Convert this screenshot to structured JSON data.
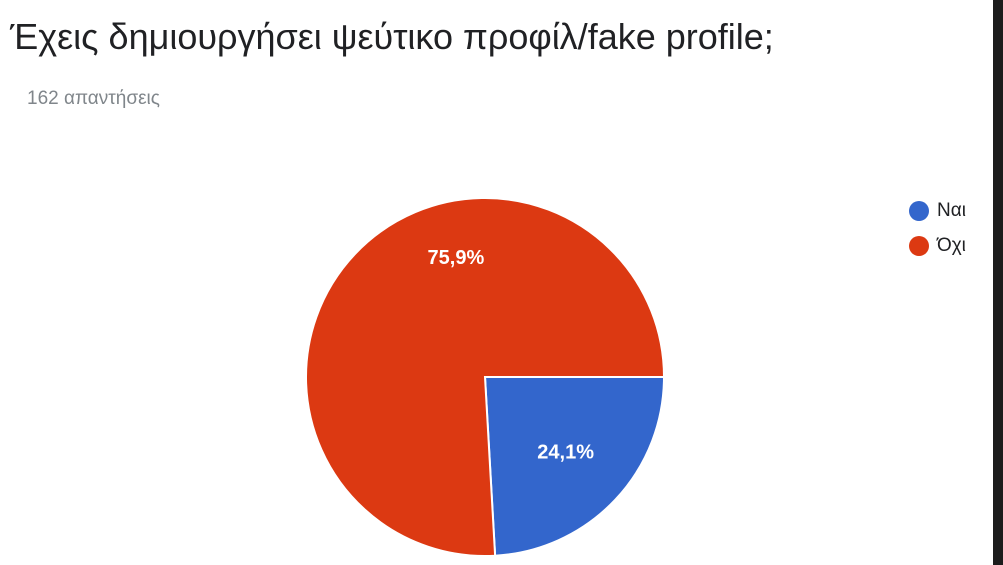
{
  "header": {
    "title": "Έχεις δημιουργήσει ψεύτικο προφίλ/fake profile;",
    "response_count": "162 απαντήσεις"
  },
  "chart_data": {
    "type": "pie",
    "title": "Έχεις δημιουργήσει ψεύτικο προφίλ/fake profile;",
    "subtitle": "162 απαντήσεις",
    "categories": [
      "Ναι",
      "Όχι"
    ],
    "values": [
      24.1,
      75.9
    ],
    "labels": [
      "24,1%",
      "75,9%"
    ],
    "colors": [
      "#3366cc",
      "#dc3912"
    ],
    "legend_position": "right",
    "start_angle_deg": 90,
    "direction": "clockwise"
  }
}
